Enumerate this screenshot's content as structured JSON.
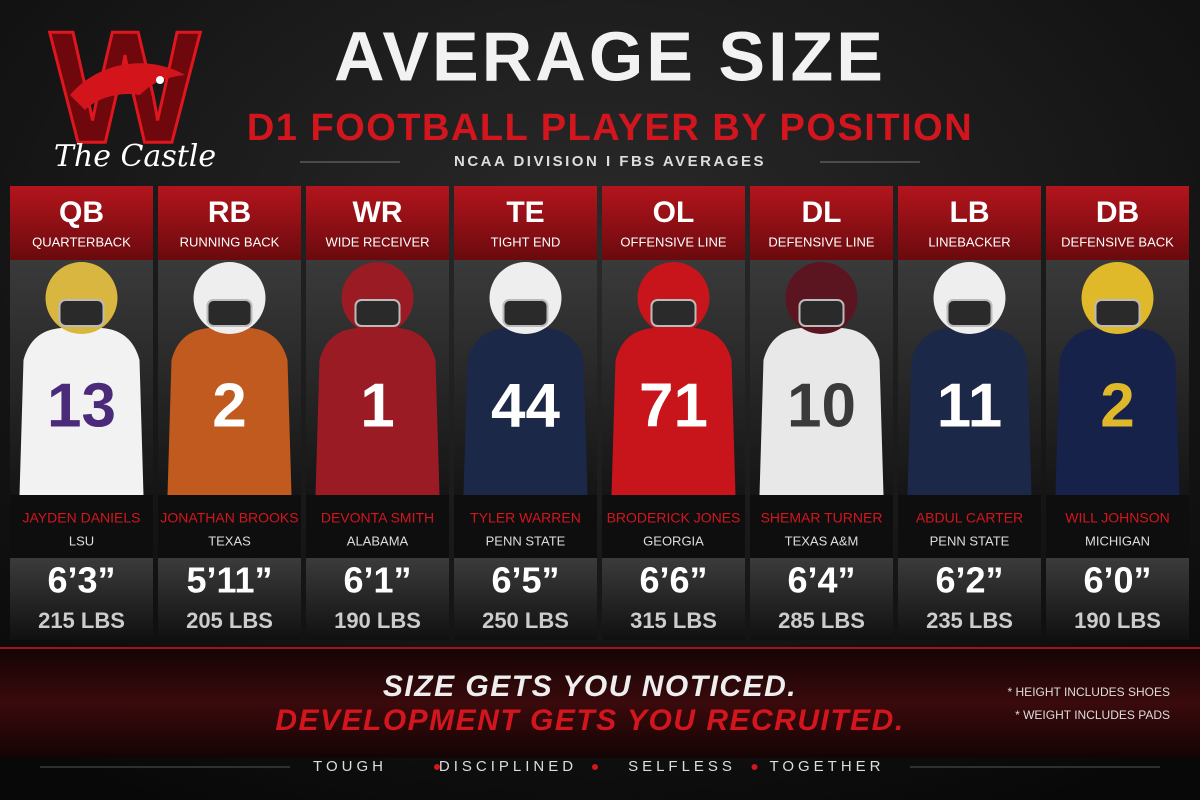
{
  "logo": {
    "letter": "W",
    "text": "The Castle"
  },
  "header": {
    "title": "AVERAGE SIZE",
    "subtitle": "D1 FOOTBALL PLAYER BY POSITION",
    "note": "NCAA DIVISION I FBS AVERAGES"
  },
  "positions": [
    {
      "abbr": "QB",
      "name": "QUARTERBACK",
      "jersey": "13",
      "player": "JAYDEN DANIELS",
      "school": "LSU",
      "height": "6’3”",
      "weight": "215 LBS"
    },
    {
      "abbr": "RB",
      "name": "RUNNING BACK",
      "jersey": "2",
      "player": "JONATHAN BROOKS",
      "school": "TEXAS",
      "height": "5’11”",
      "weight": "205 LBS"
    },
    {
      "abbr": "WR",
      "name": "WIDE RECEIVER",
      "jersey": "1",
      "player": "DEVONTA SMITH",
      "school": "ALABAMA",
      "height": "6’1”",
      "weight": "190 LBS"
    },
    {
      "abbr": "TE",
      "name": "TIGHT END",
      "jersey": "44",
      "player": "TYLER WARREN",
      "school": "PENN STATE",
      "height": "6’5”",
      "weight": "250 LBS"
    },
    {
      "abbr": "OL",
      "name": "OFFENSIVE LINE",
      "jersey": "71",
      "player": "BRODERICK JONES",
      "school": "GEORGIA",
      "height": "6’6”",
      "weight": "315 LBS"
    },
    {
      "abbr": "DL",
      "name": "DEFENSIVE LINE",
      "jersey": "10",
      "player": "SHEMAR TURNER",
      "school": "TEXAS A&M",
      "height": "6’4”",
      "weight": "285 LBS"
    },
    {
      "abbr": "LB",
      "name": "LINEBACKER",
      "jersey": "11",
      "player": "ABDUL CARTER",
      "school": "PENN STATE",
      "height": "6’2”",
      "weight": "235 LBS"
    },
    {
      "abbr": "DB",
      "name": "DEFENSIVE BACK",
      "jersey": "2",
      "player": "WILL JOHNSON",
      "school": "MICHIGAN",
      "height": "6’0”",
      "weight": "190 LBS"
    }
  ],
  "footer": {
    "line1": "SIZE GETS YOU NOTICED.",
    "line2": "DEVELOPMENT GETS YOU RECRUITED.",
    "notes": [
      "* HEIGHT INCLUDES SHOES",
      "* WEIGHT INCLUDES PADS"
    ],
    "motto": [
      "TOUGH",
      "DISCIPLINED",
      "SELFLESS",
      "TOGETHER"
    ]
  }
}
